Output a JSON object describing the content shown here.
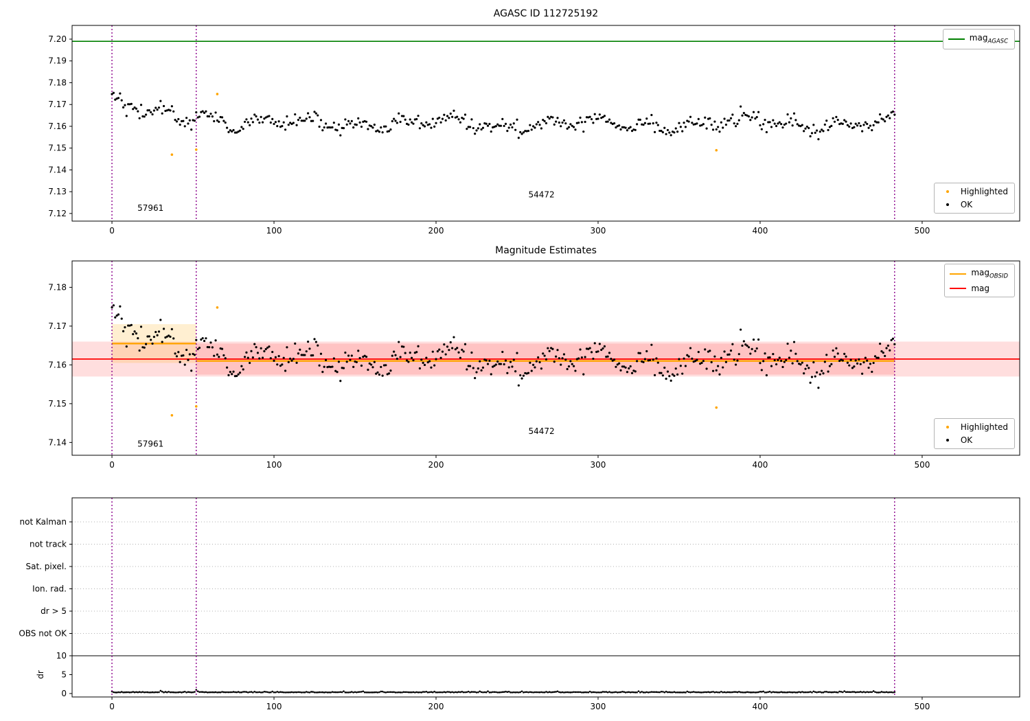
{
  "colors": {
    "ok": "#000000",
    "highlighted": "#ffa500",
    "agasc_line": "#008000",
    "obsid_line": "#ffa500",
    "mag_line": "#ff0000",
    "vline": "#8b008b",
    "grid": "#b0b0b0",
    "frame": "#000000"
  },
  "legend": {
    "mag_main": "mag",
    "agasc_sub": "AGASC",
    "obsid_main": "mag",
    "obsid_sub": "OBSID",
    "mag_label": "mag",
    "highlighted": "Highlighted",
    "ok": "OK"
  },
  "chart_data": [
    {
      "type": "scatter",
      "title": "AGASC ID 112725192",
      "xticks": [
        0,
        100,
        200,
        300,
        400,
        500
      ],
      "yticks": [
        7.12,
        7.13,
        7.14,
        7.15,
        7.16,
        7.17,
        7.18,
        7.19,
        7.2
      ],
      "xlim": [
        -24.6,
        560.2
      ],
      "ylim": [
        7.1165,
        7.2063
      ],
      "mag_agasc": 7.199,
      "vlines": [
        0,
        52,
        483
      ],
      "annotations": [
        {
          "text": "57961",
          "x": 15.7,
          "y": 7.1213
        },
        {
          "text": "54472",
          "x": 257,
          "y": 7.1273
        }
      ],
      "highlighted": [
        [
          37,
          7.147
        ],
        [
          52,
          7.1493
        ],
        [
          65,
          7.1748
        ],
        [
          373,
          7.149
        ]
      ],
      "series": {
        "seed": 42,
        "x_start": 0,
        "x_end": 483,
        "break_x": 52,
        "mean1": 7.1645,
        "decay1": 0.009,
        "mean2": 7.1612,
        "decay2": 0.0075,
        "amp1": 0.0022,
        "amp2": 0.0015,
        "noise": 0.0016
      },
      "legend_line_items": [
        "mag_AGASC"
      ],
      "legend_marker_items": [
        "Highlighted",
        "OK"
      ]
    },
    {
      "type": "scatter",
      "title": "Magnitude Estimates",
      "xticks": [
        0,
        100,
        200,
        300,
        400,
        500
      ],
      "yticks": [
        7.14,
        7.15,
        7.16,
        7.17,
        7.18
      ],
      "xlim": [
        -24.6,
        560.2
      ],
      "ylim": [
        7.1367,
        7.1868
      ],
      "mag": 7.1615,
      "mag_band": [
        7.157,
        7.166
      ],
      "mag_obsids": [
        {
          "obsid": "57961",
          "x0": 0,
          "x1": 52,
          "mag": 7.1655,
          "band": [
            7.1605,
            7.1705
          ]
        },
        {
          "obsid": "54472",
          "x0": 52,
          "x1": 483,
          "mag": 7.161,
          "band": [
            7.1575,
            7.1655
          ]
        }
      ],
      "vlines": [
        0,
        52,
        483
      ],
      "annotations": [
        {
          "text": "57961",
          "x": 15.7,
          "y": 7.1389
        },
        {
          "text": "54472",
          "x": 257,
          "y": 7.1422
        }
      ],
      "legend_line_items": [
        "mag_OBSID",
        "mag"
      ],
      "legend_marker_items": [
        "Highlighted",
        "OK"
      ]
    },
    {
      "type": "scatter",
      "categories": [
        "not Kalman",
        "not track",
        "Sat. pixel.",
        "Ion. rad.",
        "dr > 5",
        "OBS not OK"
      ],
      "dr_label": "dr",
      "dr_ticks": [
        0,
        5,
        10
      ],
      "dr_hline": 10,
      "xticks": [
        0,
        100,
        200,
        300,
        400,
        500
      ],
      "vlines": [
        0,
        52,
        483
      ],
      "dr_series": {
        "seed": 7,
        "x_end": 483,
        "base": 0.28,
        "noise": 0.1,
        "spike_x": 52,
        "spike": 1.0
      }
    }
  ]
}
